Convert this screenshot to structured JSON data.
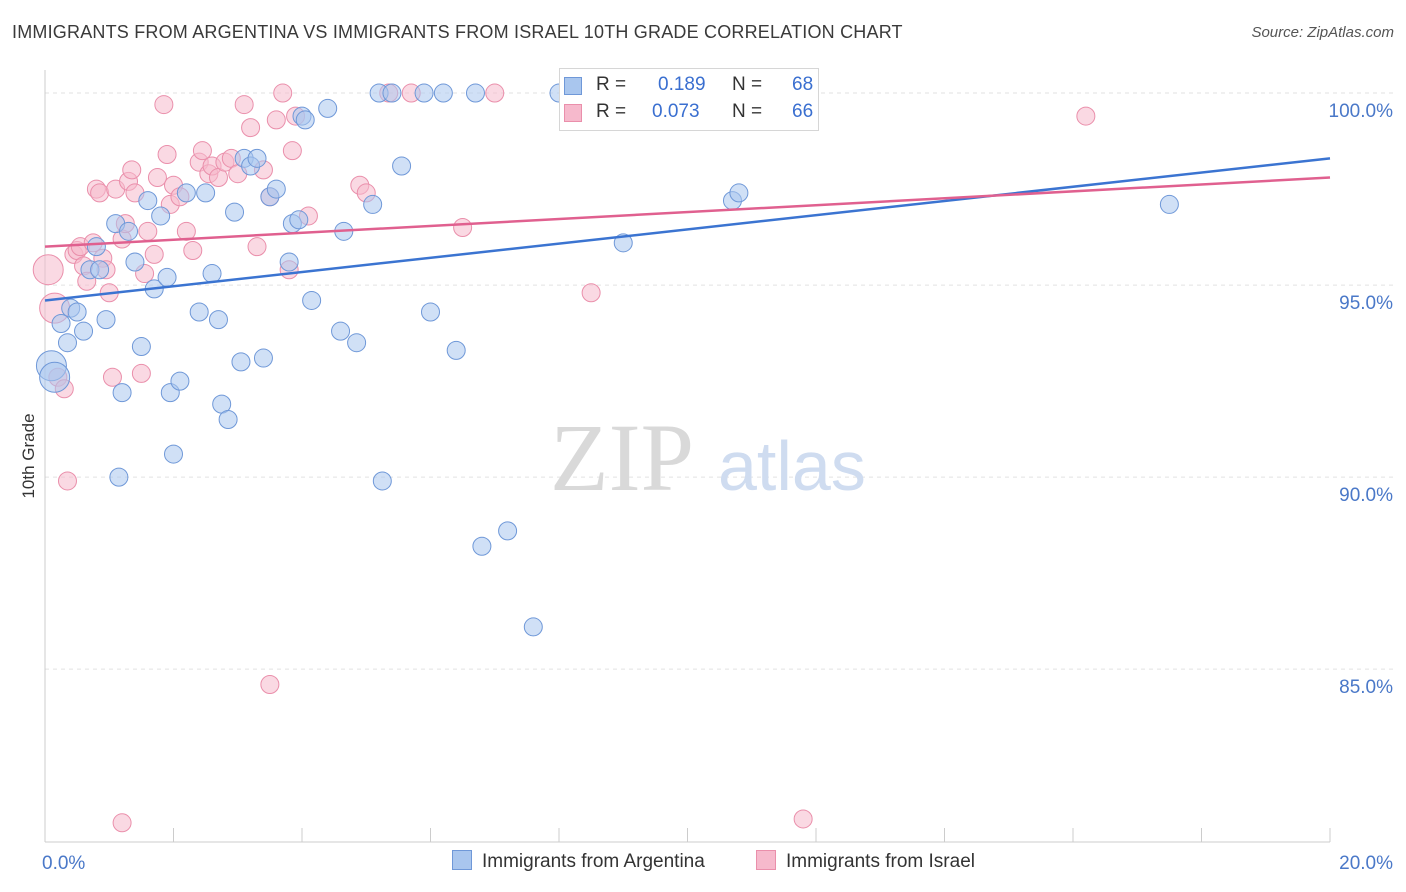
{
  "title": "IMMIGRANTS FROM ARGENTINA VS IMMIGRANTS FROM ISRAEL 10TH GRADE CORRELATION CHART",
  "source": "Source: ZipAtlas.com",
  "watermark": {
    "zip": "ZIP",
    "atlas": "atlas"
  },
  "legend": {
    "argentina": {
      "r_label": "R =",
      "r_value": "0.189",
      "n_label": "N =",
      "n_value": "68"
    },
    "israel": {
      "r_label": "R =",
      "r_value": "0.073",
      "n_label": "N =",
      "n_value": "66"
    }
  },
  "bottom_legend": {
    "argentina": "Immigrants from Argentina",
    "israel": "Immigrants from Israel"
  },
  "colors": {
    "argentina_fill": "#a9c6ee",
    "argentina_stroke": "#6f98d8",
    "argentina_line": "#3b74d1",
    "israel_fill": "#f6b9cc",
    "israel_stroke": "#ea8fab",
    "israel_line": "#e0608f",
    "tick_label": "#4a78c8",
    "grid": "#e2e2e2"
  },
  "chart_data": {
    "type": "scatter",
    "title": "IMMIGRANTS FROM ARGENTINA VS IMMIGRANTS FROM ISRAEL 10TH GRADE CORRELATION CHART",
    "xlabel": "",
    "ylabel": "10th Grade",
    "xlim": [
      0,
      20
    ],
    "ylim": [
      80.5,
      100.6
    ],
    "x_tick_labels": [
      {
        "value": 0,
        "label": "0.0%"
      },
      {
        "value": 20,
        "label": "20.0%"
      }
    ],
    "y_tick_labels": [
      {
        "value": 85,
        "label": "85.0%"
      },
      {
        "value": 90,
        "label": "90.0%"
      },
      {
        "value": 95,
        "label": "95.0%"
      },
      {
        "value": 100,
        "label": "100.0%"
      }
    ],
    "grid": true,
    "legend_position": "top-center",
    "series": [
      {
        "name": "Immigrants from Argentina",
        "trend": {
          "x0": 0,
          "y0": 94.6,
          "x1": 20,
          "y1": 98.3
        },
        "points": [
          [
            0.1,
            92.9
          ],
          [
            0.15,
            92.6
          ],
          [
            0.25,
            94.0
          ],
          [
            0.35,
            93.5
          ],
          [
            0.4,
            94.4
          ],
          [
            0.5,
            94.3
          ],
          [
            0.6,
            93.8
          ],
          [
            0.7,
            95.4
          ],
          [
            0.8,
            96.0
          ],
          [
            0.85,
            95.4
          ],
          [
            0.95,
            94.1
          ],
          [
            1.1,
            96.6
          ],
          [
            1.2,
            92.2
          ],
          [
            1.3,
            96.4
          ],
          [
            1.4,
            95.6
          ],
          [
            1.5,
            93.4
          ],
          [
            1.6,
            97.2
          ],
          [
            1.7,
            94.9
          ],
          [
            1.8,
            96.8
          ],
          [
            1.9,
            95.2
          ],
          [
            1.95,
            92.2
          ],
          [
            2.1,
            92.5
          ],
          [
            2.2,
            97.4
          ],
          [
            2.4,
            94.3
          ],
          [
            2.5,
            97.4
          ],
          [
            2.6,
            95.3
          ],
          [
            2.7,
            94.1
          ],
          [
            2.75,
            91.9
          ],
          [
            2.85,
            91.5
          ],
          [
            2.95,
            96.9
          ],
          [
            3.05,
            93.0
          ],
          [
            3.1,
            98.3
          ],
          [
            3.2,
            98.1
          ],
          [
            3.3,
            98.3
          ],
          [
            3.4,
            93.1
          ],
          [
            3.5,
            97.3
          ],
          [
            3.6,
            97.5
          ],
          [
            3.8,
            95.6
          ],
          [
            3.85,
            96.6
          ],
          [
            3.95,
            96.7
          ],
          [
            4.0,
            99.4
          ],
          [
            4.05,
            99.3
          ],
          [
            4.15,
            94.6
          ],
          [
            4.4,
            99.6
          ],
          [
            4.6,
            93.8
          ],
          [
            4.65,
            96.4
          ],
          [
            4.85,
            93.5
          ],
          [
            5.1,
            97.1
          ],
          [
            5.2,
            100.0
          ],
          [
            5.25,
            89.9
          ],
          [
            5.4,
            100.0
          ],
          [
            5.55,
            98.1
          ],
          [
            5.9,
            100.0
          ],
          [
            6.0,
            94.3
          ],
          [
            6.2,
            100.0
          ],
          [
            6.4,
            93.3
          ],
          [
            6.7,
            100.0
          ],
          [
            6.8,
            88.2
          ],
          [
            7.2,
            88.6
          ],
          [
            7.6,
            86.1
          ],
          [
            8.0,
            100.0
          ],
          [
            8.2,
            100.0
          ],
          [
            9.0,
            96.1
          ],
          [
            10.7,
            97.2
          ],
          [
            10.8,
            97.4
          ],
          [
            17.5,
            97.1
          ],
          [
            1.15,
            90.0
          ],
          [
            2.0,
            90.6
          ]
        ]
      },
      {
        "name": "Immigrants from Israel",
        "trend": {
          "x0": 0,
          "y0": 96.0,
          "x1": 20,
          "y1": 97.8
        },
        "points": [
          [
            0.05,
            95.4
          ],
          [
            0.15,
            94.4
          ],
          [
            0.2,
            92.6
          ],
          [
            0.3,
            92.3
          ],
          [
            0.35,
            89.9
          ],
          [
            0.45,
            95.8
          ],
          [
            0.5,
            95.9
          ],
          [
            0.55,
            96.0
          ],
          [
            0.6,
            95.5
          ],
          [
            0.65,
            95.1
          ],
          [
            0.75,
            96.1
          ],
          [
            0.8,
            97.5
          ],
          [
            0.85,
            97.4
          ],
          [
            0.9,
            95.7
          ],
          [
            0.95,
            95.4
          ],
          [
            1.0,
            94.8
          ],
          [
            1.05,
            92.6
          ],
          [
            1.1,
            97.5
          ],
          [
            1.2,
            96.2
          ],
          [
            1.25,
            96.6
          ],
          [
            1.3,
            97.7
          ],
          [
            1.35,
            98.0
          ],
          [
            1.4,
            97.4
          ],
          [
            1.5,
            92.7
          ],
          [
            1.55,
            95.3
          ],
          [
            1.6,
            96.4
          ],
          [
            1.7,
            95.8
          ],
          [
            1.75,
            97.8
          ],
          [
            1.85,
            99.7
          ],
          [
            1.9,
            98.4
          ],
          [
            1.95,
            97.1
          ],
          [
            2.0,
            97.6
          ],
          [
            2.1,
            97.3
          ],
          [
            2.2,
            96.4
          ],
          [
            2.3,
            95.9
          ],
          [
            2.4,
            98.2
          ],
          [
            2.45,
            98.5
          ],
          [
            2.55,
            97.9
          ],
          [
            2.6,
            98.1
          ],
          [
            2.7,
            97.8
          ],
          [
            2.8,
            98.2
          ],
          [
            2.9,
            98.3
          ],
          [
            3.0,
            97.9
          ],
          [
            3.1,
            99.7
          ],
          [
            3.2,
            99.1
          ],
          [
            3.3,
            96.0
          ],
          [
            3.4,
            98.0
          ],
          [
            3.5,
            97.3
          ],
          [
            3.6,
            99.3
          ],
          [
            3.7,
            100.0
          ],
          [
            3.8,
            95.4
          ],
          [
            3.85,
            98.5
          ],
          [
            3.9,
            99.4
          ],
          [
            4.1,
            96.8
          ],
          [
            4.9,
            97.6
          ],
          [
            5.0,
            97.4
          ],
          [
            5.35,
            100.0
          ],
          [
            5.7,
            100.0
          ],
          [
            6.5,
            96.5
          ],
          [
            7.0,
            100.0
          ],
          [
            8.5,
            94.8
          ],
          [
            11.1,
            100.0
          ],
          [
            1.2,
            81.0
          ],
          [
            3.5,
            84.6
          ],
          [
            11.8,
            81.1
          ],
          [
            16.2,
            99.4
          ]
        ]
      }
    ]
  }
}
